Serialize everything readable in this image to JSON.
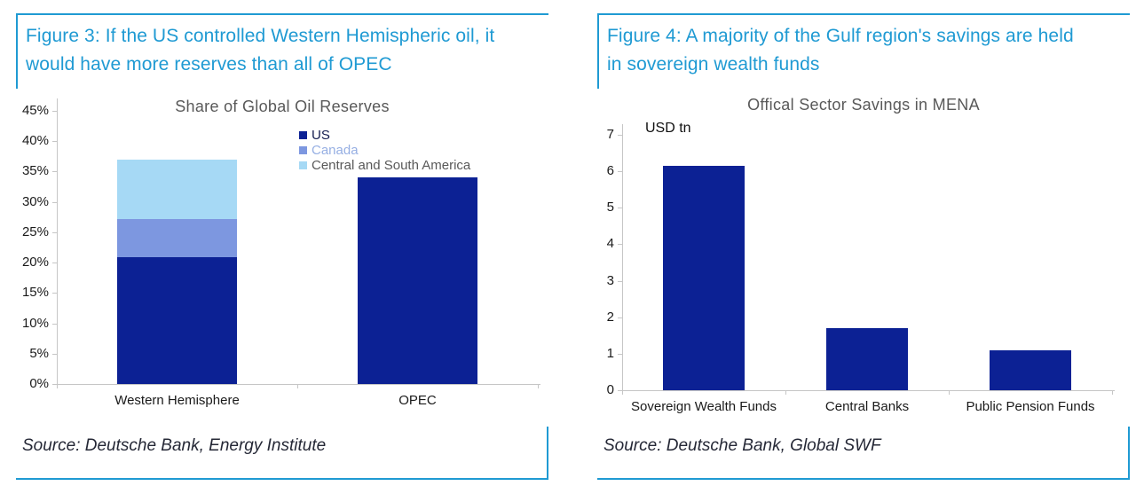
{
  "colors": {
    "accent_cyan": "#1f9ad3",
    "bar_navy": "#0c2194",
    "bar_canada_blue": "#7d97e0",
    "bar_light_blue": "#a6d9f5",
    "chart_title_gray": "#595959",
    "axis_gray": "#c6c6c6",
    "source_text": "#252836"
  },
  "figures": [
    {
      "id": "figure3",
      "title": "Figure 3: If the US controlled Western Hemispheric oil, it\nwould have more reserves than all of OPEC",
      "source": "Source: Deutsche Bank, Energy Institute"
    },
    {
      "id": "figure4",
      "title": "Figure 4: A majority of the Gulf region's savings are held\nin sovereign wealth funds",
      "source": "Source: Deutsche Bank, Global SWF"
    }
  ],
  "chart_data": [
    {
      "type": "bar",
      "stacked": true,
      "title": "Share of Global Oil Reserves",
      "categories": [
        "Western Hemisphere",
        "OPEC"
      ],
      "series": [
        {
          "name": "US",
          "values": [
            20.9,
            34
          ],
          "color": "#0c2194",
          "label_color": "#131c4f"
        },
        {
          "name": "Canada",
          "values": [
            6.3,
            0
          ],
          "color": "#7d97e0",
          "label_color": "#96afe3"
        },
        {
          "name": "Central and South America",
          "values": [
            9.8,
            0
          ],
          "color": "#a6d9f5",
          "label_color": "#595959"
        }
      ],
      "ylim": [
        0,
        45
      ],
      "ytick_step": 5,
      "ytick_format": "percent",
      "legend_position": "top-right",
      "grid": false
    },
    {
      "type": "bar",
      "stacked": false,
      "title": "Offical Sector Savings in MENA",
      "ylabel": "USD tn",
      "categories": [
        "Sovereign Wealth Funds",
        "Central Banks",
        "Public Pension Funds"
      ],
      "values": [
        6.15,
        1.7,
        1.1
      ],
      "color": "#0c2194",
      "ylim": [
        0,
        7
      ],
      "ytick_step": 1,
      "ytick_format": "number",
      "grid": false
    }
  ]
}
